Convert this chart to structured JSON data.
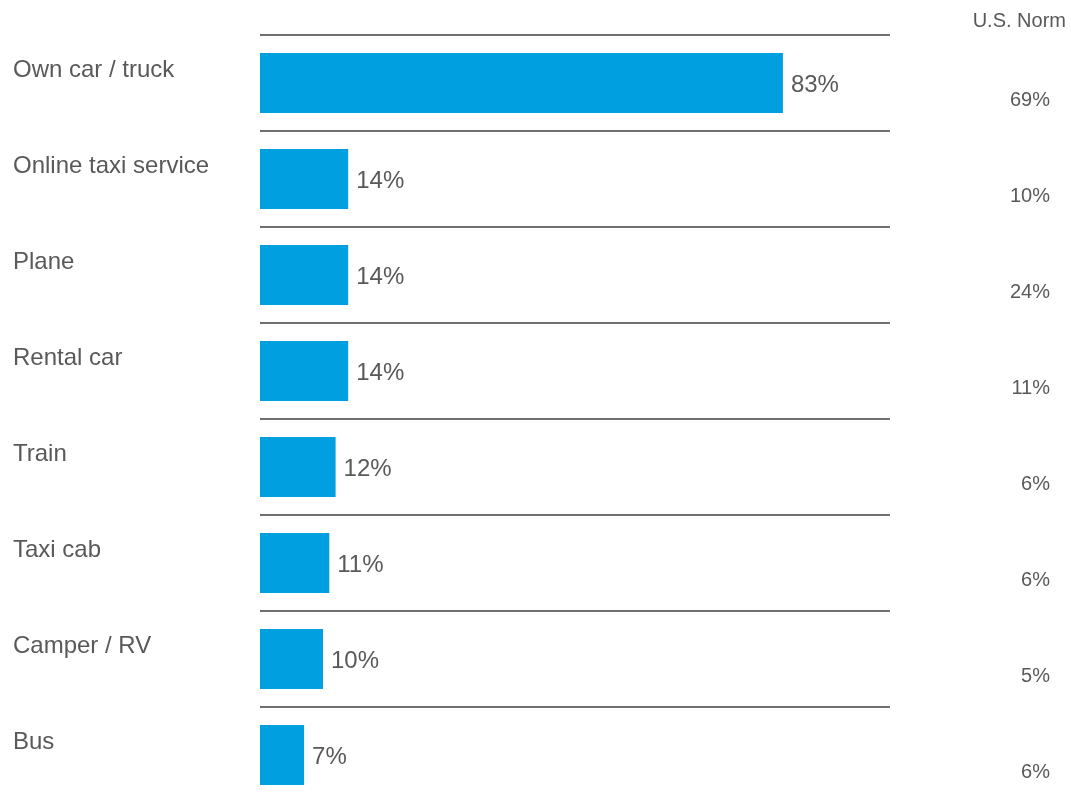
{
  "chart_data": {
    "type": "bar",
    "orientation": "horizontal",
    "categories": [
      "Own car / truck",
      "Online taxi service",
      "Plane",
      "Rental car",
      "Train",
      "Taxi cab",
      "Camper / RV",
      "Bus"
    ],
    "values": [
      83,
      14,
      14,
      14,
      12,
      11,
      10,
      7
    ],
    "value_labels": [
      "83%",
      "14%",
      "14%",
      "14%",
      "12%",
      "11%",
      "10%",
      "7%"
    ],
    "color": "#009fe0",
    "xlim": [
      0,
      100
    ],
    "tick_labels": "y",
    "grid": "y",
    "annotations": [
      "U.S. Norm",
      "69%",
      "10%",
      "24%",
      "11%",
      "6%",
      "6%",
      "5%",
      "6%"
    ]
  }
}
